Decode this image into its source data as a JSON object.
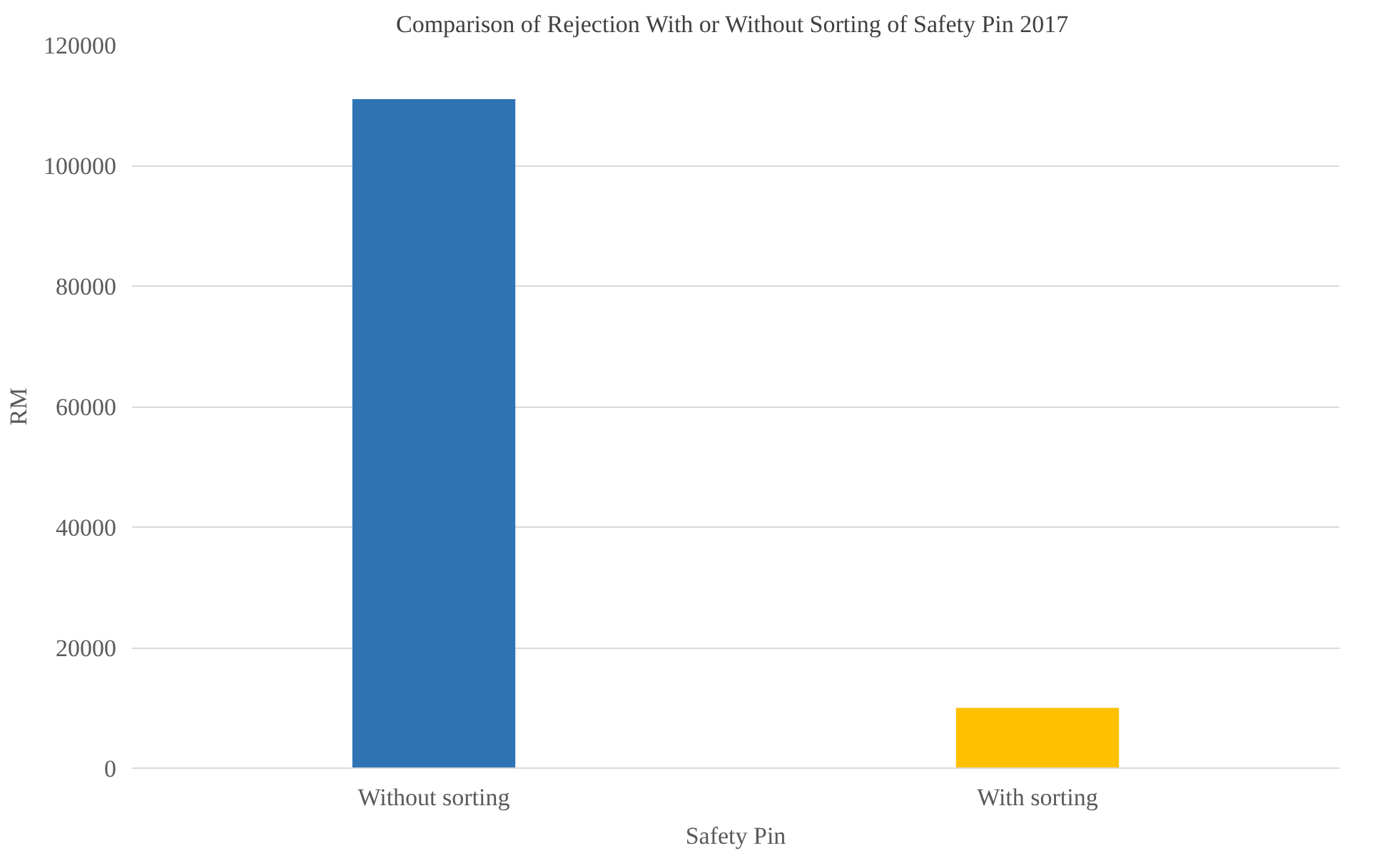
{
  "chart_data": {
    "type": "bar",
    "title": "Comparison of  Rejection With or Without Sorting of Safety Pin 2017",
    "xlabel": "Safety Pin",
    "ylabel": "RM",
    "categories": [
      "Without sorting",
      "With sorting"
    ],
    "values": [
      111000,
      10000
    ],
    "colors": [
      "#2e74b5",
      "#ffc000"
    ],
    "ylim": [
      0,
      120000
    ],
    "yticks": [
      0,
      20000,
      40000,
      60000,
      80000,
      100000,
      120000
    ],
    "grid": "y"
  }
}
